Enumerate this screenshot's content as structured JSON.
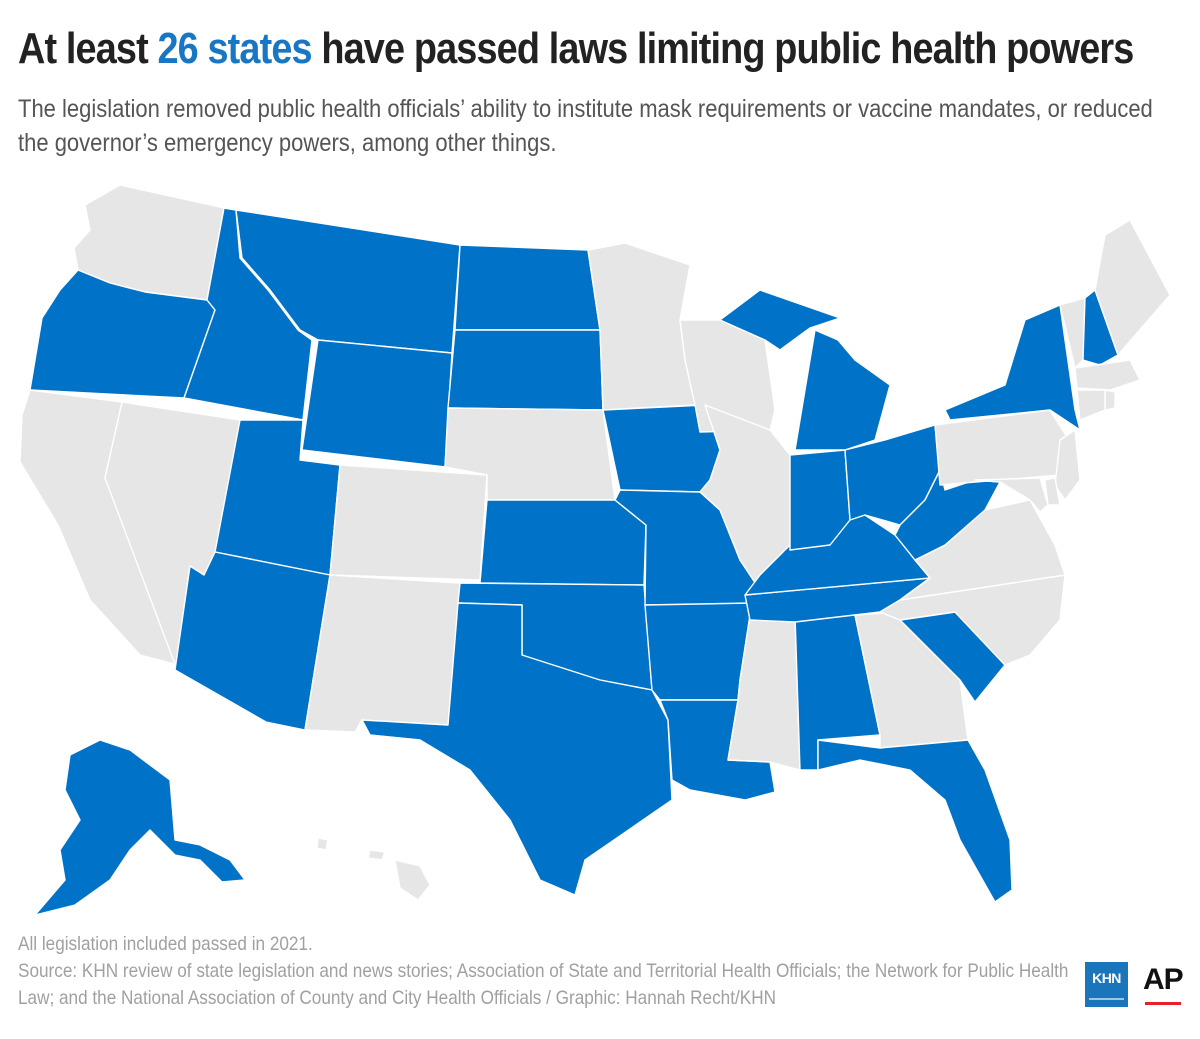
{
  "title": {
    "before": "At least ",
    "highlight": "26 states",
    "after": " have passed laws limiting public health powers"
  },
  "subtitle": "The legislation removed public health officials’ ability to institute mask requirements or vaccine mandates, or reduced the governor’s emergency powers, among other things.",
  "colors": {
    "passed": "#0073c8",
    "not_passed": "#e6e6e6",
    "border": "#ffffff",
    "highlight_text": "#1877c5"
  },
  "states_passed": [
    "AK",
    "AL",
    "AR",
    "AZ",
    "FL",
    "ID",
    "IN",
    "IA",
    "KS",
    "KY",
    "LA",
    "MI",
    "MO",
    "MT",
    "NH",
    "NY",
    "ND",
    "OH",
    "OK",
    "OR",
    "SC",
    "SD",
    "TN",
    "TX",
    "UT",
    "WV",
    "WY"
  ],
  "states_not_passed": [
    "WA",
    "CA",
    "NV",
    "CO",
    "NM",
    "NE",
    "MN",
    "WI",
    "IL",
    "MS",
    "GA",
    "NC",
    "VA",
    "PA",
    "NJ",
    "DE",
    "MD",
    "CT",
    "RI",
    "MA",
    "VT",
    "ME",
    "HI"
  ],
  "footer": {
    "note": "All legislation included passed in 2021.",
    "source": "Source: KHN review of state legislation and news stories; Association of State and Territorial Health Officials; the Network for Public Health Law; and the National Association of County and City Health Officials / Graphic: Hannah Recht/KHN"
  },
  "logos": {
    "khn": "KHN",
    "ap": "AP"
  }
}
